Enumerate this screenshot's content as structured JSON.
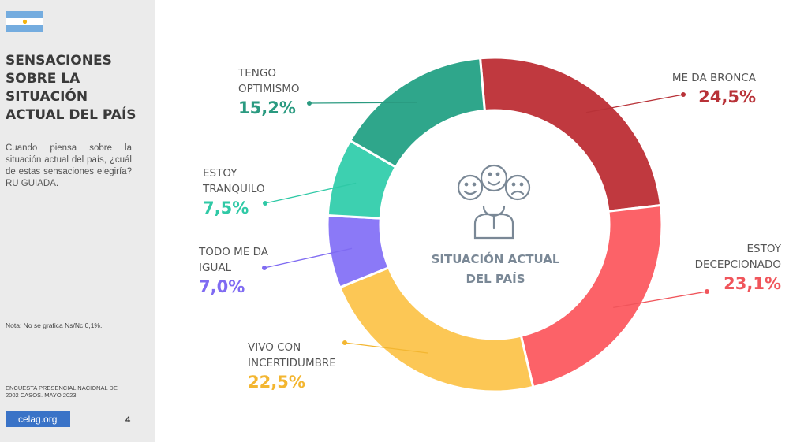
{
  "sidebar": {
    "title_lines": [
      "SENSACIONES",
      "SOBRE LA",
      "SITUACIÓN",
      "ACTUAL DEL PAÍS"
    ],
    "question": "Cuando piensa sobre la situación actual del país, ¿cuál de estas sensaciones elegiría? RU GUIADA.",
    "note": "Nota: No se grafica Ns/Nc 0,1%.",
    "survey_lines": [
      "ENCUESTA PRESENCIAL NACIONAL DE",
      "2002 CASOS. MAYO 2023"
    ],
    "logo": "celag.org",
    "page_number": "4",
    "flag_colors": {
      "blue": "#74acdf",
      "white": "#ffffff",
      "sun": "#f6b40e"
    }
  },
  "chart_data": {
    "type": "pie",
    "donut": true,
    "center_label_lines": [
      "SITUACIÓN ACTUAL",
      "DEL PAÍS"
    ],
    "center_icon": "people-emotions-icon",
    "slices": [
      {
        "label_lines": [
          "ME DA BRONCA"
        ],
        "value": 24.5,
        "value_label": "24,5%",
        "color": "#c0393f",
        "label_color": "#b83238"
      },
      {
        "label_lines": [
          "ESTOY",
          "DECEPCIONADO"
        ],
        "value": 23.1,
        "value_label": "23,1%",
        "color": "#fc6268",
        "label_color": "#f0555b"
      },
      {
        "label_lines": [
          "VIVO CON",
          "INCERTIDUMBRE"
        ],
        "value": 22.5,
        "value_label": "22,5%",
        "color": "#fcc755",
        "label_color": "#f3b631"
      },
      {
        "label_lines": [
          "TODO ME DA",
          "IGUAL"
        ],
        "value": 7.0,
        "value_label": "7,0%",
        "color": "#8b79f7",
        "label_color": "#7f6bf2"
      },
      {
        "label_lines": [
          "ESTOY",
          "TRANQUILO"
        ],
        "value": 7.5,
        "value_label": "7,5%",
        "color": "#3dd0b0",
        "label_color": "#2fc9a6"
      },
      {
        "label_lines": [
          "TENGO",
          "OPTIMISMO"
        ],
        "value": 15.2,
        "value_label": "15,2%",
        "color": "#2fa68b",
        "label_color": "#2a9a80"
      }
    ]
  }
}
